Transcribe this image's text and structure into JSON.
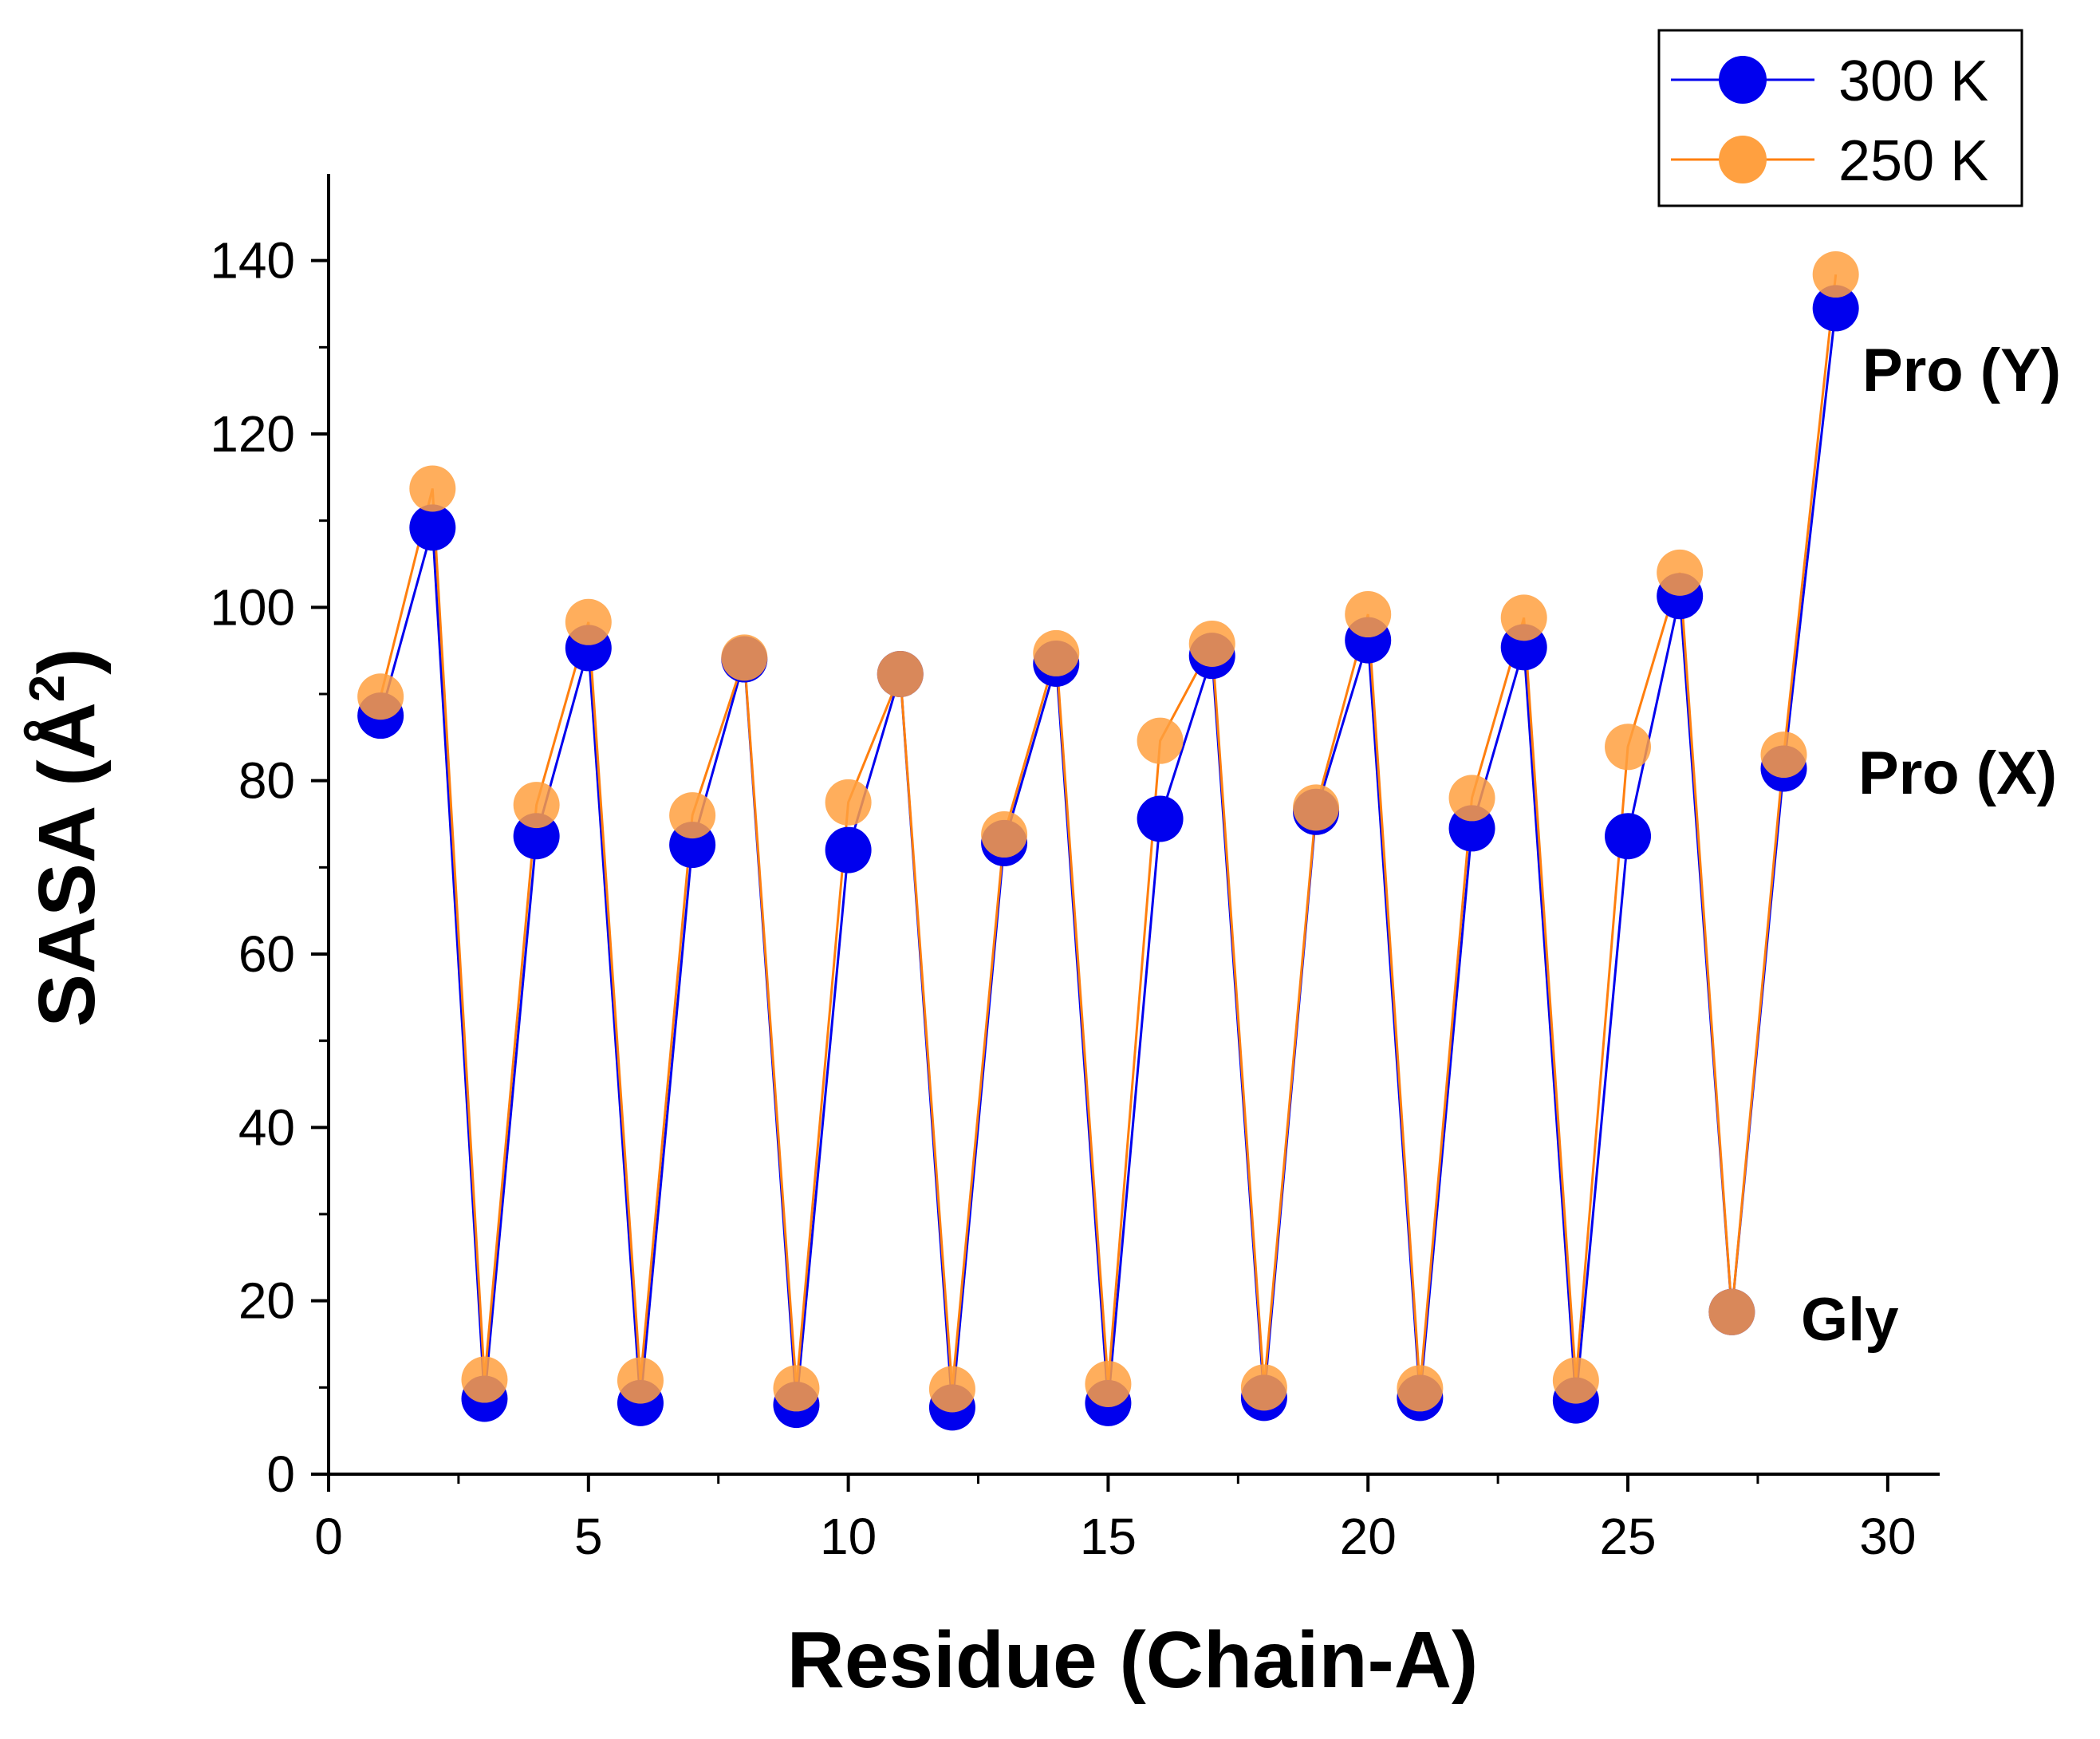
{
  "chart_data": {
    "type": "line",
    "title": "",
    "xlabel": "Residue (Chain-A)",
    "ylabel": "SASA (Å",
    "ylabel_sup": "2",
    "ylabel_close": ")",
    "xlim": [
      0,
      31
    ],
    "ylim": [
      0,
      150
    ],
    "xticks": [
      0,
      5,
      10,
      15,
      20,
      25,
      30
    ],
    "yticks": [
      0,
      20,
      40,
      60,
      80,
      100,
      120,
      140
    ],
    "x": [
      1,
      2,
      3,
      4,
      5,
      6,
      7,
      8,
      9,
      10,
      11,
      12,
      13,
      14,
      15,
      16,
      17,
      18,
      19,
      20,
      21,
      22,
      23,
      24,
      25,
      26,
      27,
      28,
      29
    ],
    "series": [
      {
        "name": "300 K",
        "color": "#0000ee",
        "marker_color": "#0000ee",
        "values": [
          87.5,
          109.2,
          8.7,
          73.6,
          95.3,
          8.2,
          72.6,
          94.0,
          8.0,
          72.0,
          92.3,
          7.7,
          72.8,
          93.5,
          8.2,
          75.6,
          94.4,
          8.8,
          76.4,
          96.2,
          8.8,
          74.5,
          95.4,
          8.5,
          73.6,
          101.3,
          18.7,
          81.4,
          134.5
        ]
      },
      {
        "name": "250 K",
        "color": "#ff7f0e",
        "marker_color": "#ffa040",
        "values": [
          89.7,
          113.7,
          10.9,
          77.2,
          98.3,
          10.8,
          76.0,
          94.2,
          9.9,
          77.5,
          92.3,
          9.8,
          73.8,
          94.7,
          10.4,
          84.6,
          95.8,
          10.0,
          76.9,
          99.2,
          9.9,
          78.0,
          98.8,
          10.8,
          83.9,
          104.0,
          18.7,
          83.0,
          138.4
        ]
      }
    ],
    "annotations": [
      {
        "text": "Pro (Y)",
        "x": 29,
        "y": 134.5
      },
      {
        "text": "Pro (X)",
        "x": 28,
        "y": 81.4
      },
      {
        "text": "Gly",
        "x": 27,
        "y": 18.7
      }
    ],
    "legend": "top-right"
  }
}
